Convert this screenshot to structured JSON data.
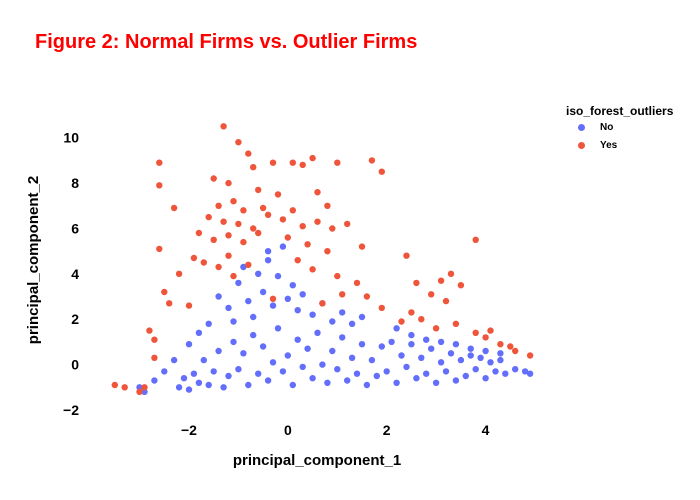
{
  "chart_data": {
    "type": "scatter",
    "title": "Figure 2: Normal Firms vs. Outlier Firms",
    "xlabel": "principal_component_1",
    "ylabel": "principal_component_2",
    "xlim": [
      -3.8,
      5.0
    ],
    "ylim": [
      -2.0,
      11.0
    ],
    "x_ticks": [
      -2,
      0,
      2,
      4
    ],
    "y_ticks": [
      -2,
      0,
      2,
      4,
      6,
      8,
      10
    ],
    "grid": false,
    "legend": {
      "title": "iso_forest_outliers",
      "position": "top-right"
    },
    "series": [
      {
        "name": "No",
        "color": "#636efa",
        "values_note_excluded": true,
        "points": [
          [
            -2.2,
            -1.0
          ],
          [
            -2.1,
            -0.6
          ],
          [
            -2.0,
            -1.1
          ],
          [
            -1.9,
            -0.4
          ],
          [
            -1.8,
            -0.8
          ],
          [
            -1.7,
            0.2
          ],
          [
            -1.6,
            -0.9
          ],
          [
            -1.5,
            -0.3
          ],
          [
            -1.4,
            0.6
          ],
          [
            -1.3,
            -1.0
          ],
          [
            -1.2,
            -0.5
          ],
          [
            -1.1,
            1.0
          ],
          [
            -1.0,
            -0.2
          ],
          [
            -0.9,
            0.5
          ],
          [
            -0.8,
            -0.9
          ],
          [
            -0.7,
            1.3
          ],
          [
            -0.6,
            -0.4
          ],
          [
            -0.5,
            0.8
          ],
          [
            -0.4,
            -0.7
          ],
          [
            -0.3,
            0.1
          ],
          [
            -0.2,
            1.6
          ],
          [
            -0.1,
            -0.3
          ],
          [
            0.0,
            0.4
          ],
          [
            0.1,
            -0.9
          ],
          [
            0.2,
            1.1
          ],
          [
            0.3,
            -0.1
          ],
          [
            0.4,
            0.7
          ],
          [
            0.5,
            -0.6
          ],
          [
            0.6,
            1.4
          ],
          [
            0.7,
            0.0
          ],
          [
            0.8,
            -0.8
          ],
          [
            0.9,
            0.6
          ],
          [
            1.0,
            -0.2
          ],
          [
            1.1,
            1.2
          ],
          [
            1.2,
            -0.7
          ],
          [
            1.3,
            0.3
          ],
          [
            1.4,
            -0.4
          ],
          [
            1.5,
            0.9
          ],
          [
            1.6,
            -0.9
          ],
          [
            1.7,
            0.2
          ],
          [
            1.8,
            -0.5
          ],
          [
            1.9,
            0.8
          ],
          [
            2.0,
            -0.3
          ],
          [
            2.1,
            1.0
          ],
          [
            2.2,
            -0.8
          ],
          [
            2.3,
            0.4
          ],
          [
            2.4,
            -0.1
          ],
          [
            2.5,
            0.9
          ],
          [
            2.6,
            -0.6
          ],
          [
            2.7,
            0.3
          ],
          [
            2.8,
            -0.4
          ],
          [
            2.9,
            0.7
          ],
          [
            3.0,
            -0.8
          ],
          [
            3.1,
            0.1
          ],
          [
            3.2,
            -0.3
          ],
          [
            3.3,
            0.5
          ],
          [
            3.4,
            -0.7
          ],
          [
            3.5,
            0.2
          ],
          [
            3.6,
            -0.5
          ],
          [
            3.7,
            0.4
          ],
          [
            3.8,
            -0.2
          ],
          [
            3.9,
            0.3
          ],
          [
            4.0,
            -0.6
          ],
          [
            4.1,
            0.1
          ],
          [
            4.2,
            -0.3
          ],
          [
            4.3,
            0.2
          ],
          [
            4.4,
            -0.4
          ],
          [
            4.6,
            -0.2
          ],
          [
            4.8,
            -0.3
          ],
          [
            4.9,
            -0.4
          ],
          [
            -1.4,
            3.0
          ],
          [
            -1.2,
            2.5
          ],
          [
            -1.0,
            3.6
          ],
          [
            -0.8,
            2.8
          ],
          [
            -0.6,
            4.0
          ],
          [
            -0.5,
            3.2
          ],
          [
            -0.4,
            4.6
          ],
          [
            -0.3,
            2.6
          ],
          [
            -0.2,
            3.9
          ],
          [
            -0.1,
            5.2
          ],
          [
            0.0,
            2.9
          ],
          [
            0.1,
            3.5
          ],
          [
            0.2,
            2.4
          ],
          [
            0.3,
            3.1
          ],
          [
            0.5,
            2.2
          ],
          [
            0.7,
            2.7
          ],
          [
            0.9,
            1.9
          ],
          [
            1.1,
            2.3
          ],
          [
            1.3,
            1.8
          ],
          [
            1.5,
            2.1
          ],
          [
            -1.6,
            1.8
          ],
          [
            -1.8,
            1.4
          ],
          [
            -2.0,
            0.9
          ],
          [
            -2.3,
            0.2
          ],
          [
            -2.5,
            -0.3
          ],
          [
            -2.7,
            -0.7
          ],
          [
            -3.0,
            -1.0
          ],
          [
            -2.9,
            -1.2
          ],
          [
            -1.1,
            1.9
          ],
          [
            -0.7,
            2.1
          ],
          [
            2.2,
            1.6
          ],
          [
            2.5,
            1.3
          ],
          [
            2.8,
            1.1
          ],
          [
            3.1,
            1.0
          ],
          [
            3.4,
            0.9
          ],
          [
            3.7,
            0.7
          ],
          [
            4.0,
            0.6
          ],
          [
            4.3,
            0.5
          ],
          [
            -0.9,
            4.3
          ],
          [
            -0.4,
            5.0
          ]
        ]
      },
      {
        "name": "Yes",
        "color": "#ef553b",
        "points": [
          [
            -1.3,
            10.5
          ],
          [
            -1.0,
            9.8
          ],
          [
            -0.8,
            9.3
          ],
          [
            -0.7,
            8.7
          ],
          [
            -0.3,
            8.9
          ],
          [
            0.1,
            8.9
          ],
          [
            0.3,
            8.8
          ],
          [
            0.5,
            9.1
          ],
          [
            1.0,
            8.9
          ],
          [
            1.7,
            9.0
          ],
          [
            1.9,
            8.5
          ],
          [
            -1.5,
            8.2
          ],
          [
            -1.2,
            8.0
          ],
          [
            -0.6,
            7.7
          ],
          [
            -0.2,
            7.5
          ],
          [
            0.6,
            7.6
          ],
          [
            0.8,
            7.0
          ],
          [
            -1.4,
            7.0
          ],
          [
            -1.1,
            7.2
          ],
          [
            -0.9,
            6.8
          ],
          [
            -0.5,
            6.9
          ],
          [
            -1.6,
            6.5
          ],
          [
            -1.3,
            6.3
          ],
          [
            -1.0,
            6.2
          ],
          [
            -0.7,
            6.0
          ],
          [
            -0.4,
            6.6
          ],
          [
            -0.1,
            6.4
          ],
          [
            0.1,
            6.8
          ],
          [
            0.3,
            6.1
          ],
          [
            0.6,
            6.3
          ],
          [
            0.9,
            6.0
          ],
          [
            -1.8,
            5.8
          ],
          [
            -1.5,
            5.5
          ],
          [
            -1.2,
            5.7
          ],
          [
            -0.9,
            5.4
          ],
          [
            -0.6,
            5.8
          ],
          [
            0.0,
            5.6
          ],
          [
            0.4,
            5.3
          ],
          [
            0.8,
            5.0
          ],
          [
            1.2,
            6.2
          ],
          [
            1.5,
            5.2
          ],
          [
            -1.9,
            4.7
          ],
          [
            -1.7,
            4.5
          ],
          [
            -1.4,
            4.3
          ],
          [
            -1.2,
            4.8
          ],
          [
            -0.8,
            4.4
          ],
          [
            0.2,
            4.6
          ],
          [
            0.5,
            4.2
          ],
          [
            1.0,
            3.9
          ],
          [
            1.4,
            3.6
          ],
          [
            1.6,
            3.0
          ],
          [
            -2.6,
            8.9
          ],
          [
            -2.6,
            7.9
          ],
          [
            -2.3,
            6.9
          ],
          [
            -2.6,
            5.1
          ],
          [
            -2.5,
            3.2
          ],
          [
            -2.4,
            2.7
          ],
          [
            -2.0,
            2.6
          ],
          [
            -2.8,
            1.5
          ],
          [
            -2.7,
            1.1
          ],
          [
            -2.7,
            0.3
          ],
          [
            -3.5,
            -0.9
          ],
          [
            -3.3,
            -1.0
          ],
          [
            -3.0,
            -1.2
          ],
          [
            -2.9,
            -1.0
          ],
          [
            2.4,
            4.8
          ],
          [
            2.6,
            3.6
          ],
          [
            2.9,
            3.1
          ],
          [
            3.1,
            3.7
          ],
          [
            3.3,
            4.0
          ],
          [
            3.5,
            3.5
          ],
          [
            3.2,
            2.8
          ],
          [
            2.5,
            2.3
          ],
          [
            2.7,
            2.0
          ],
          [
            3.0,
            1.6
          ],
          [
            3.4,
            1.8
          ],
          [
            3.8,
            1.4
          ],
          [
            4.0,
            1.2
          ],
          [
            4.3,
            0.9
          ],
          [
            4.6,
            0.6
          ],
          [
            4.9,
            0.4
          ],
          [
            3.8,
            5.5
          ],
          [
            4.1,
            1.5
          ],
          [
            4.5,
            0.8
          ],
          [
            2.3,
            1.9
          ],
          [
            1.9,
            2.5
          ],
          [
            1.1,
            3.1
          ],
          [
            0.7,
            2.7
          ],
          [
            -0.3,
            2.9
          ],
          [
            -1.1,
            3.9
          ],
          [
            -2.2,
            4.0
          ]
        ]
      }
    ]
  }
}
